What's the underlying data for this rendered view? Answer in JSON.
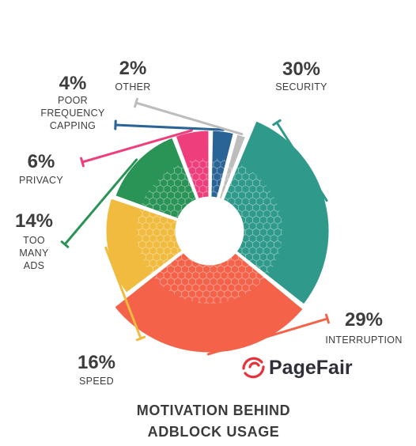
{
  "chart_data": {
    "type": "pie",
    "variant": "donut",
    "title_lines": [
      "MOTIVATION BEHIND",
      "ADBLOCK USAGE"
    ],
    "slices": [
      {
        "key": "security",
        "percent_label": "30%",
        "value": 30,
        "label_lines": [
          "SECURITY"
        ],
        "color": "#2f9a8c"
      },
      {
        "key": "interruption",
        "percent_label": "29%",
        "value": 29,
        "label_lines": [
          "INTERRUPTION"
        ],
        "color": "#f5624a"
      },
      {
        "key": "speed",
        "percent_label": "16%",
        "value": 16,
        "label_lines": [
          "SPEED"
        ],
        "color": "#f0bb3e"
      },
      {
        "key": "too-many-ads",
        "percent_label": "14%",
        "value": 14,
        "label_lines": [
          "TOO",
          "MANY",
          "ADS"
        ],
        "color": "#2a9457"
      },
      {
        "key": "privacy",
        "percent_label": "6%",
        "value": 6,
        "label_lines": [
          "PRIVACY"
        ],
        "color": "#ee3f7c"
      },
      {
        "key": "poor-frequency-capping",
        "percent_label": "4%",
        "value": 4,
        "label_lines": [
          "POOR",
          "FREQUENCY",
          "CAPPING"
        ],
        "color": "#2a6496"
      },
      {
        "key": "other",
        "percent_label": "2%",
        "value": 2,
        "label_lines": [
          "OTHER"
        ],
        "color": "#bdbdbd"
      }
    ]
  },
  "brand": {
    "name_part1": "Page",
    "name_part2": "Fair",
    "logo_color": "#e8313a"
  }
}
